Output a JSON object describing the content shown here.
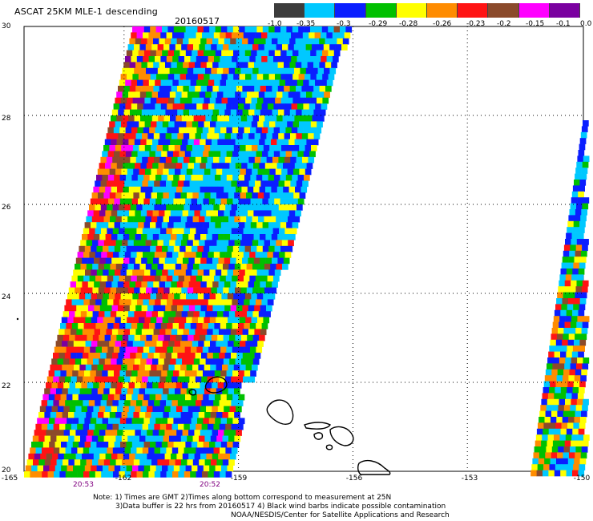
{
  "header": {
    "title": "ASCAT 25KM MLE-1 descending",
    "date": "20160517"
  },
  "legend": {
    "colors": [
      "#3c3c3c",
      "#00c8ff",
      "#0a1eff",
      "#00c000",
      "#ffff00",
      "#ff8c00",
      "#ff1414",
      "#8b4a2b",
      "#ff00ff",
      "#7a00a0"
    ],
    "labels": [
      "-1.0",
      "-0.35",
      "-0.3",
      "-0.29",
      "-0.28",
      "-0.26",
      "-0.23",
      "-0.2",
      "-0.15",
      "-0.1",
      "0.0"
    ]
  },
  "axes": {
    "lat_labels": [
      "30",
      "28",
      "26",
      "24",
      "22",
      "20"
    ],
    "lon_labels": [
      "-165",
      "-162",
      "-159",
      "-156",
      "-153",
      "-150"
    ]
  },
  "times": [
    "20:53",
    "20:52"
  ],
  "notes": [
    "Note: 1) Times are GMT 2)Times along bottom correspond to measurement at 25N",
    "3)Data buffer is 22 hrs from 20160517 4) Black wind barbs indicate possible contamination",
    "NOAA/NESDIS/Center for Satellite Applications and Research"
  ],
  "map_extent": {
    "lon": [
      -165,
      -150
    ],
    "lat": [
      20,
      30
    ]
  }
}
